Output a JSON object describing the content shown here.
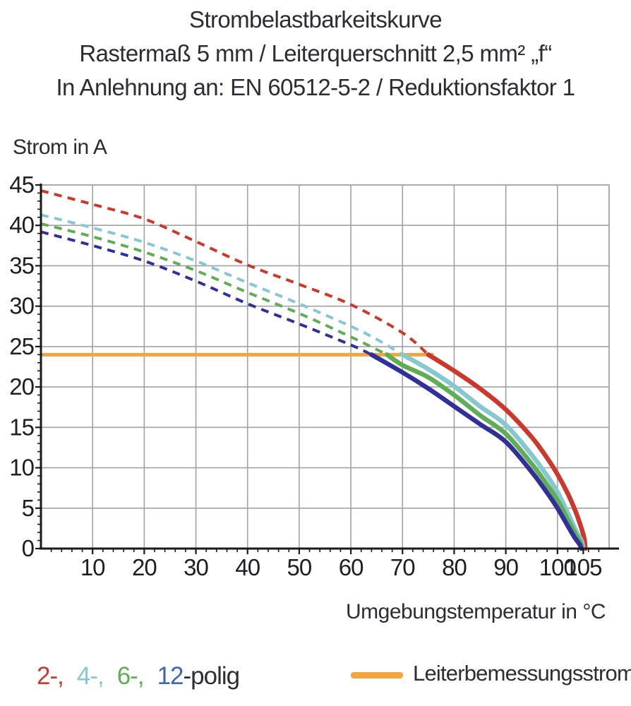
{
  "title": {
    "line1": "Strombelastbarkeitskurve",
    "line2": "Rastermaß 5 mm / Leiterquerschnitt 2,5 mm² „f“",
    "line3": "In Anlehnung an: EN 60512-5-2 / Reduktionsfaktor 1"
  },
  "y_axis_title": "Strom in A",
  "x_axis_title": "Umgebungstemperatur in °C",
  "legend": {
    "poles": [
      {
        "label": "2-,",
        "color": "#cc392c"
      },
      {
        "label": "4-,",
        "color": "#86c8d0"
      },
      {
        "label": "6-,",
        "color": "#5fae55"
      },
      {
        "label": "12",
        "color": "#3a69b1"
      }
    ],
    "poles_suffix": "-polig",
    "rated": {
      "label": "Leiterbemessungsstrom",
      "color": "#f4a43c"
    }
  },
  "chart_data": {
    "type": "line",
    "title": "Strombelastbarkeitskurve",
    "subtitle": "Rastermaß 5 mm / Leiterquerschnitt 2,5 mm² „f“ / In Anlehnung an: EN 60512-5-2 / Reduktionsfaktor 1",
    "xlabel": "Umgebungstemperatur in °C",
    "ylabel": "Strom in A",
    "xlim": [
      0,
      110
    ],
    "ylim": [
      0,
      45
    ],
    "grid": true,
    "x_tick_labels": [
      10,
      20,
      30,
      40,
      50,
      60,
      70,
      80,
      90,
      100,
      105
    ],
    "y_tick_labels": [
      0,
      5,
      10,
      15,
      20,
      25,
      30,
      35,
      40,
      45
    ],
    "x_gridlines": [
      10,
      20,
      30,
      40,
      50,
      60,
      70,
      80,
      90,
      100
    ],
    "y_gridlines": [
      5,
      10,
      15,
      20,
      25,
      30,
      35,
      40
    ],
    "x_minor_tick_step": 2,
    "x_minor_tick_max": 108,
    "y_minor_tick_step": 1,
    "style": {
      "grid_color": "#a2a2a6",
      "axis_color": "#1a1a1a",
      "tick_label_color": "#1e1e24",
      "dashed_width": 4,
      "solid_width": 6.5,
      "rated_width": 5
    },
    "rated_current_line": {
      "name": "Leiterbemessungsstrom",
      "color": "#f4a43c",
      "y": 24,
      "x_start": 0,
      "x_end": 76
    },
    "series": [
      {
        "name": "2-polig",
        "color": "#cc392c",
        "derating_dashed": [
          [
            0,
            44.3
          ],
          [
            10,
            42.6
          ],
          [
            20,
            40.8
          ],
          [
            30,
            38.0
          ],
          [
            40,
            35.1
          ],
          [
            50,
            32.7
          ],
          [
            60,
            30.2
          ],
          [
            70,
            26.7
          ],
          [
            75,
            24
          ]
        ],
        "limit_solid": [
          [
            75,
            24
          ],
          [
            80,
            22.0
          ],
          [
            85,
            19.8
          ],
          [
            90,
            17.2
          ],
          [
            95,
            13.8
          ],
          [
            98,
            11.2
          ],
          [
            100,
            9.2
          ],
          [
            102,
            6.8
          ],
          [
            103.5,
            4.6
          ],
          [
            104.6,
            2.6
          ],
          [
            105.2,
            1.2
          ],
          [
            105.4,
            0
          ]
        ]
      },
      {
        "name": "4-polig",
        "color": "#86c8d0",
        "derating_dashed": [
          [
            0,
            41.3
          ],
          [
            10,
            39.7
          ],
          [
            20,
            37.9
          ],
          [
            30,
            35.6
          ],
          [
            40,
            32.9
          ],
          [
            50,
            30.3
          ],
          [
            60,
            27.5
          ],
          [
            65,
            25.9
          ],
          [
            70,
            24
          ]
        ],
        "limit_solid": [
          [
            70,
            24
          ],
          [
            75,
            22.2
          ],
          [
            80,
            20.1
          ],
          [
            85,
            17.6
          ],
          [
            90,
            15.3
          ],
          [
            95,
            11.6
          ],
          [
            98,
            9.0
          ],
          [
            100,
            7.0
          ],
          [
            102,
            4.4
          ],
          [
            103.6,
            2.2
          ],
          [
            104.7,
            0.9
          ],
          [
            105,
            0
          ]
        ]
      },
      {
        "name": "6-polig",
        "color": "#5fae55",
        "derating_dashed": [
          [
            0,
            40.2
          ],
          [
            10,
            38.6
          ],
          [
            20,
            36.7
          ],
          [
            30,
            34.4
          ],
          [
            40,
            31.7
          ],
          [
            50,
            29.1
          ],
          [
            60,
            26.2
          ],
          [
            67,
            24
          ]
        ],
        "limit_solid": [
          [
            67,
            24
          ],
          [
            70,
            22.7
          ],
          [
            75,
            21.2
          ],
          [
            80,
            19.0
          ],
          [
            85,
            16.5
          ],
          [
            90,
            14.2
          ],
          [
            95,
            10.5
          ],
          [
            98,
            7.9
          ],
          [
            100,
            6.0
          ],
          [
            102,
            3.6
          ],
          [
            103.5,
            1.8
          ],
          [
            104.5,
            0.7
          ],
          [
            104.8,
            0
          ]
        ]
      },
      {
        "name": "12-polig",
        "color": "#31309a",
        "derating_dashed": [
          [
            0,
            39.2
          ],
          [
            10,
            37.5
          ],
          [
            20,
            35.6
          ],
          [
            30,
            33.1
          ],
          [
            40,
            30.3
          ],
          [
            50,
            27.8
          ],
          [
            60,
            25.2
          ],
          [
            64,
            24
          ]
        ],
        "limit_solid": [
          [
            64,
            24
          ],
          [
            70,
            21.8
          ],
          [
            75,
            19.8
          ],
          [
            80,
            17.6
          ],
          [
            85,
            15.4
          ],
          [
            90,
            13.2
          ],
          [
            95,
            9.5
          ],
          [
            98,
            6.9
          ],
          [
            100,
            5.0
          ],
          [
            102,
            2.8
          ],
          [
            103.3,
            1.4
          ],
          [
            104.3,
            0.5
          ],
          [
            104.6,
            0
          ]
        ]
      }
    ]
  }
}
